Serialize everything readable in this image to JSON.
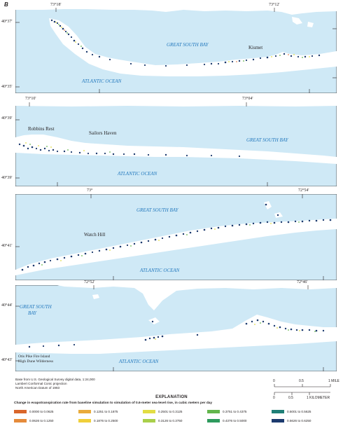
{
  "panel_letter": "B",
  "colors": {
    "water": "#cfe9f6",
    "land": "#ffffff",
    "water_label": "#1f76bc",
    "frame": "#231f20"
  },
  "panels": [
    {
      "id": "panel-1",
      "lon_labels": [
        "73°18'",
        "73°12'"
      ],
      "lat_labels": [
        "40°37'",
        "40°35'"
      ],
      "water_labels": [
        "GREAT SOUTH BAY",
        "ATLANTIC OCEAN"
      ],
      "place_labels": [
        "Kismet"
      ]
    },
    {
      "id": "panel-2",
      "lon_labels": [
        "73°10'",
        "73°04'"
      ],
      "lat_labels": [
        "40°39'",
        "40°39'"
      ],
      "water_labels": [
        "GREAT SOUTH BAY",
        "ATLANTIC OCEAN"
      ],
      "place_labels": [
        "Robbins Rest",
        "Sailors Haven"
      ]
    },
    {
      "id": "panel-3",
      "lon_labels": [
        "73°",
        "72°54'"
      ],
      "lat_labels": [
        "40°41'"
      ],
      "water_labels": [
        "GREAT SOUTH BAY",
        "ATLANTIC OCEAN"
      ],
      "place_labels": [
        "Watch Hill"
      ]
    },
    {
      "id": "panel-4",
      "lon_labels": [
        "72°52'",
        "72°46'"
      ],
      "lat_labels": [
        "40°44'",
        "40°43'"
      ],
      "water_labels": [
        "GREAT SOUTH",
        "BAY",
        "ATLANTIC OCEAN"
      ],
      "place_labels": [
        "Otis Pike Fire Island",
        "High Dune Wilderness"
      ]
    }
  ],
  "credits": [
    "Base from U.S. Geological Survey digital data, 1:24,000",
    "Lambert Conformal Conic projection",
    "North American Datum of 1983"
  ],
  "scale": {
    "mile_ticks": [
      "0",
      "0.5",
      "1 MILE"
    ],
    "km_ticks": [
      "0",
      "0.5",
      "1 KILOMETER"
    ]
  },
  "legend": {
    "title": "EXPLANATION",
    "subtitle": "Change in evapotranspiration rate from baseline simulation to simulation of 0.6-meter sea-level rise, in cubic meters per day",
    "classes": [
      {
        "label": "0.0000 to 0.0625",
        "color": "#d9662b"
      },
      {
        "label": "0.0626 to 0.1250",
        "color": "#e58b3b"
      },
      {
        "label": "0.1251 to 0.1875",
        "color": "#e9ab3b"
      },
      {
        "label": "0.1876 to 0.2500",
        "color": "#f0cf3a"
      },
      {
        "label": "0.2501 to 0.3125",
        "color": "#e2dd43"
      },
      {
        "label": "0.3126 to 0.3750",
        "color": "#a9cf4a"
      },
      {
        "label": "0.3751 to 0.4375",
        "color": "#63b64c"
      },
      {
        "label": "0.4376 to 0.5000",
        "color": "#2e9a5d"
      },
      {
        "label": "0.5001 to 0.5625",
        "color": "#1f7f77"
      },
      {
        "label": "0.5626 to 0.6250",
        "color": "#1c3a6e"
      }
    ]
  }
}
